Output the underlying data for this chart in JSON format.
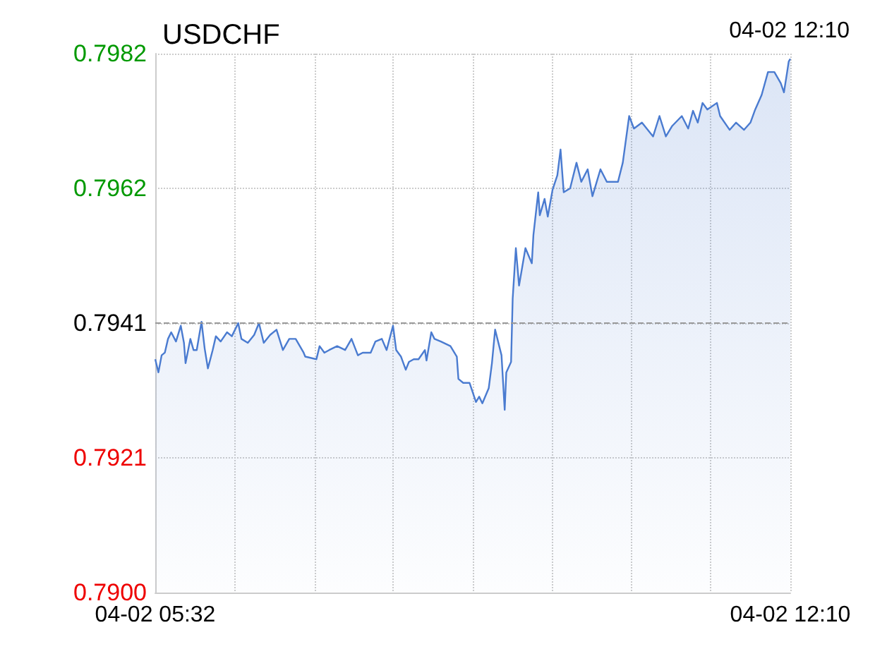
{
  "chart_data": {
    "type": "area",
    "title": "USDCHF",
    "annotations": [
      "04-02 12:10"
    ],
    "xlim": [
      "--04-02T05:32",
      "--04-02T12:10"
    ],
    "xticks": [
      {
        "value": "--04-02T05:32",
        "label": "04-02 05:32"
      },
      {
        "value": "--04-02T06:22",
        "label": null
      },
      {
        "value": "--04-02T07:12",
        "label": null
      },
      {
        "value": "--04-02T08:01",
        "label": null
      },
      {
        "value": "--04-02T08:51",
        "label": null
      },
      {
        "value": "--04-02T09:41",
        "label": null
      },
      {
        "value": "--04-02T10:30",
        "label": null
      },
      {
        "value": "--04-02T11:20",
        "label": null
      },
      {
        "value": "--04-02T12:10",
        "label": "04-02 12:10"
      }
    ],
    "ylim": [
      0.79,
      0.7982
    ],
    "yticks": [
      {
        "value": 0.79,
        "label": "0.7900"
      },
      {
        "value": 0.79205,
        "label": "0.7921"
      },
      {
        "value": 0.7941,
        "label": "0.7941"
      },
      {
        "value": 0.79615,
        "label": "0.7962"
      },
      {
        "value": 0.7982,
        "label": "0.7982"
      }
    ],
    "ref_lines": [
      {
        "axis": "y",
        "value": 0.7941,
        "label": null,
        "color": "#999999",
        "line_style": "dashed"
      }
    ],
    "grid": true,
    "marker": "none",
    "line_style": "solid",
    "series": [
      {
        "color": "#4a7bd0",
        "x": [
          "--04-02T05:32",
          "--04-02T05:34",
          "--04-02T05:36",
          "--04-02T05:38",
          "--04-02T05:40",
          "--04-02T05:42",
          "--04-02T05:45",
          "--04-02T05:48",
          "--04-02T05:50",
          "--04-02T05:51",
          "--04-02T05:54",
          "--04-02T05:56",
          "--04-02T05:58",
          "--04-02T06:01",
          "--04-02T06:03",
          "--04-02T06:05",
          "--04-02T06:08",
          "--04-02T06:10",
          "--04-02T06:13",
          "--04-02T06:17",
          "--04-02T06:20",
          "--04-02T06:24",
          "--04-02T06:26",
          "--04-02T06:30",
          "--04-02T06:34",
          "--04-02T06:37",
          "--04-02T06:40",
          "--04-02T06:44",
          "--04-02T06:48",
          "--04-02T06:52",
          "--04-02T06:56",
          "--04-02T07:00",
          "--04-02T07:05",
          "--04-02T07:06",
          "--04-02T07:13",
          "--04-02T07:15",
          "--04-02T07:18",
          "--04-02T07:21",
          "--04-02T07:26",
          "--04-02T07:31",
          "--04-02T07:35",
          "--04-02T07:39",
          "--04-02T07:42",
          "--04-02T07:47",
          "--04-02T07:50",
          "--04-02T07:54",
          "--04-02T07:57",
          "--04-02T08:01",
          "--04-02T08:03",
          "--04-02T08:06",
          "--04-02T08:09",
          "--04-02T08:11",
          "--04-02T08:14",
          "--04-02T08:17",
          "--04-02T08:21",
          "--04-02T08:22",
          "--04-02T08:25",
          "--04-02T08:27",
          "--04-02T08:31",
          "--04-02T08:37",
          "--04-02T08:41",
          "--04-02T08:42",
          "--04-02T08:45",
          "--04-02T08:49",
          "--04-02T08:53",
          "--04-02T08:55",
          "--04-02T08:57",
          "--04-02T09:01",
          "--04-02T09:03",
          "--04-02T09:05",
          "--04-02T09:09",
          "--04-02T09:11",
          "--04-02T09:12",
          "--04-02T09:15",
          "--04-02T09:16",
          "--04-02T09:18",
          "--04-02T09:20",
          "--04-02T09:24",
          "--04-02T09:28",
          "--04-02T09:29",
          "--04-02T09:32",
          "--04-02T09:33",
          "--04-02T09:36",
          "--04-02T09:38",
          "--04-02T09:41",
          "--04-02T09:44",
          "--04-02T09:46",
          "--04-02T09:48",
          "--04-02T09:52",
          "--04-02T09:56",
          "--04-02T09:59",
          "--04-02T10:03",
          "--04-02T10:06",
          "--04-02T10:11",
          "--04-02T10:15",
          "--04-02T10:22",
          "--04-02T10:25",
          "--04-02T10:29",
          "--04-02T10:32",
          "--04-02T10:37",
          "--04-02T10:44",
          "--04-02T10:48",
          "--04-02T10:52",
          "--04-02T10:56",
          "--04-02T11:02",
          "--04-02T11:06",
          "--04-02T11:09",
          "--04-02T11:12",
          "--04-02T11:15",
          "--04-02T11:18",
          "--04-02T11:24",
          "--04-02T11:26",
          "--04-02T11:32",
          "--04-02T11:36",
          "--04-02T11:41",
          "--04-02T11:45",
          "--04-02T11:48",
          "--04-02T11:52",
          "--04-02T11:56",
          "--04-02T12:00",
          "--04-02T12:04",
          "--04-02T12:06",
          "--04-02T12:08",
          "--04-02T12:09",
          "--04-02T12:10"
        ],
        "values": [
          0.79355,
          0.79335,
          0.79361,
          0.79365,
          0.79386,
          0.79396,
          0.79382,
          0.79406,
          0.7938,
          0.79349,
          0.79386,
          0.79369,
          0.79369,
          0.79412,
          0.79371,
          0.79341,
          0.79369,
          0.7939,
          0.79382,
          0.79396,
          0.7939,
          0.7941,
          0.79386,
          0.7938,
          0.79392,
          0.7941,
          0.7938,
          0.79392,
          0.794,
          0.79369,
          0.79386,
          0.79386,
          0.79365,
          0.79359,
          0.79355,
          0.79375,
          0.79365,
          0.79369,
          0.79375,
          0.79369,
          0.79386,
          0.79361,
          0.79365,
          0.79365,
          0.79382,
          0.79386,
          0.79369,
          0.79406,
          0.79369,
          0.79359,
          0.79339,
          0.79351,
          0.79355,
          0.79355,
          0.79369,
          0.79353,
          0.79396,
          0.79386,
          0.79382,
          0.79375,
          0.79359,
          0.79325,
          0.79319,
          0.79319,
          0.7929,
          0.79298,
          0.79288,
          0.79311,
          0.79349,
          0.794,
          0.79361,
          0.79278,
          0.79335,
          0.79351,
          0.79447,
          0.79524,
          0.79467,
          0.79524,
          0.79501,
          0.79544,
          0.79609,
          0.79574,
          0.79599,
          0.79572,
          0.79613,
          0.79635,
          0.79674,
          0.79609,
          0.79615,
          0.79654,
          0.79625,
          0.79644,
          0.79603,
          0.79644,
          0.79625,
          0.79625,
          0.79654,
          0.79725,
          0.79706,
          0.79715,
          0.79694,
          0.79725,
          0.79694,
          0.7971,
          0.79725,
          0.79706,
          0.79733,
          0.79715,
          0.79745,
          0.79735,
          0.79745,
          0.79725,
          0.79704,
          0.79715,
          0.79704,
          0.79715,
          0.79735,
          0.79757,
          0.79792,
          0.79792,
          0.79775,
          0.79761,
          0.79792,
          0.79808,
          0.79812
        ]
      }
    ]
  }
}
